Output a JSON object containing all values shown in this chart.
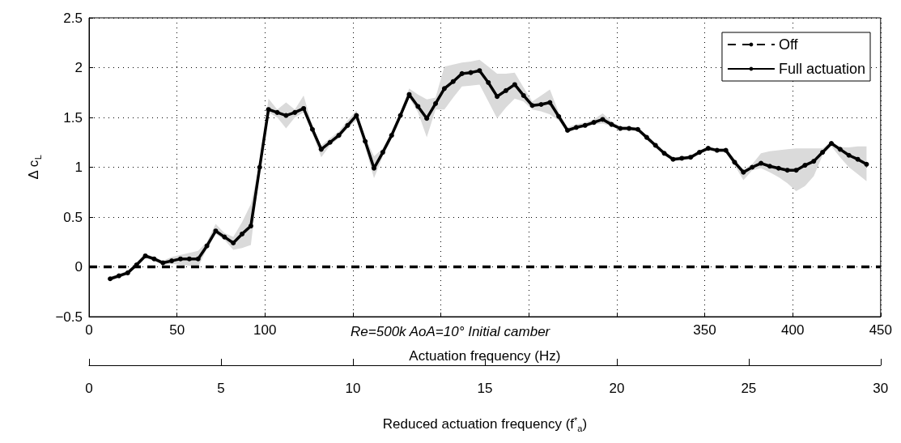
{
  "chart_data": {
    "type": "line",
    "xlabel": "Actuation frequency (Hz)",
    "ylabel": "Δ c$_{L}$",
    "x2label": "Reduced actuation frequency (f$^{*}$$_{a}$)",
    "annotations": [
      "Re=500k AoA=10° Initial camber"
    ],
    "xlim": [
      0,
      450
    ],
    "xticks": [
      0,
      50,
      100,
      {
        "value": 150,
        "label": null
      },
      {
        "value": 200,
        "label": null
      },
      {
        "value": 250,
        "label": null
      },
      {
        "value": 300,
        "label": null
      },
      350,
      400,
      450
    ],
    "x2lim": [
      0,
      30
    ],
    "x2ticks": [
      0,
      5,
      10,
      15,
      20,
      25,
      30
    ],
    "ylim": [
      -0.5,
      2.5
    ],
    "yticks": [
      {
        "value": -0.5,
        "label": "−0.5"
      },
      0,
      0.5,
      1,
      1.5,
      2,
      2.5
    ],
    "grid": true,
    "legend": "top right",
    "series": [
      {
        "name": "Off",
        "color": "#000000",
        "line_style": "dashed",
        "marker": "none",
        "x": [
          0,
          50,
          100,
          150,
          200,
          250,
          300,
          350,
          400,
          450
        ],
        "values": [
          0,
          0,
          0,
          0,
          0,
          0,
          0,
          0,
          0,
          0
        ]
      },
      {
        "name": "Full actuation",
        "color": "#000000",
        "line_style": "solid",
        "marker": "circle",
        "x": [
          12,
          17,
          22,
          27,
          32,
          37,
          42,
          47,
          52,
          57,
          62,
          67,
          72,
          77,
          82,
          87,
          92,
          97,
          102,
          107,
          112,
          117,
          122,
          127,
          132,
          137,
          142,
          147,
          152,
          157,
          162,
          167,
          172,
          177,
          182,
          187,
          192,
          197,
          202,
          207,
          212,
          217,
          222,
          227,
          232,
          237,
          242,
          247,
          252,
          257,
          262,
          267,
          272,
          277,
          282,
          287,
          292,
          297,
          302,
          307,
          312,
          317,
          322,
          327,
          332,
          337,
          342,
          347,
          352,
          357,
          362,
          367,
          372,
          377,
          382,
          387,
          392,
          397,
          402,
          407,
          412,
          417,
          422,
          427,
          432,
          437,
          442
        ],
        "values": [
          -0.12,
          -0.09,
          -0.06,
          0.02,
          0.11,
          0.08,
          0.04,
          0.06,
          0.08,
          0.08,
          0.08,
          0.21,
          0.36,
          0.3,
          0.24,
          0.33,
          0.41,
          1.0,
          1.58,
          1.55,
          1.52,
          1.55,
          1.59,
          1.38,
          1.18,
          1.25,
          1.32,
          1.42,
          1.52,
          1.26,
          0.99,
          1.15,
          1.32,
          1.52,
          1.73,
          1.61,
          1.49,
          1.64,
          1.79,
          1.86,
          1.94,
          1.95,
          1.97,
          1.85,
          1.71,
          1.77,
          1.83,
          1.72,
          1.62,
          1.63,
          1.65,
          1.51,
          1.37,
          1.4,
          1.42,
          1.45,
          1.48,
          1.43,
          1.39,
          1.39,
          1.38,
          1.3,
          1.22,
          1.14,
          1.08,
          1.09,
          1.1,
          1.15,
          1.19,
          1.17,
          1.17,
          1.05,
          0.95,
          1.0,
          1.04,
          1.01,
          0.99,
          0.97,
          0.97,
          1.02,
          1.06,
          1.15,
          1.24,
          1.18,
          1.12,
          1.08,
          1.03
        ],
        "lower": [
          -0.14,
          -0.11,
          -0.08,
          0.0,
          0.09,
          0.06,
          0.02,
          0.03,
          0.02,
          0.01,
          0.0,
          0.18,
          0.33,
          0.27,
          0.17,
          0.19,
          0.22,
          0.97,
          1.55,
          1.5,
          1.39,
          1.5,
          1.55,
          1.34,
          1.1,
          1.22,
          1.29,
          1.39,
          1.47,
          1.2,
          0.89,
          1.11,
          1.29,
          1.49,
          1.7,
          1.55,
          1.3,
          1.58,
          1.58,
          1.7,
          1.81,
          1.82,
          1.83,
          1.66,
          1.49,
          1.6,
          1.69,
          1.66,
          1.58,
          1.56,
          1.53,
          1.47,
          1.35,
          1.38,
          1.4,
          1.43,
          1.44,
          1.41,
          1.37,
          1.37,
          1.36,
          1.28,
          1.2,
          1.12,
          1.06,
          1.07,
          1.08,
          1.13,
          1.17,
          1.15,
          1.15,
          1.02,
          0.87,
          0.97,
          0.99,
          0.95,
          0.9,
          0.84,
          0.76,
          0.81,
          0.91,
          1.12,
          1.21,
          1.1,
          1.0,
          0.93,
          0.86
        ],
        "upper": [
          -0.1,
          -0.07,
          -0.04,
          0.04,
          0.13,
          0.1,
          0.06,
          0.1,
          0.12,
          0.14,
          0.16,
          0.25,
          0.43,
          0.34,
          0.3,
          0.45,
          0.63,
          1.03,
          1.69,
          1.58,
          1.65,
          1.58,
          1.72,
          1.41,
          1.22,
          1.29,
          1.36,
          1.47,
          1.57,
          1.3,
          1.11,
          1.19,
          1.36,
          1.55,
          1.79,
          1.73,
          1.68,
          1.7,
          2.01,
          2.03,
          2.05,
          2.06,
          2.08,
          2.01,
          1.94,
          1.94,
          1.95,
          1.8,
          1.66,
          1.72,
          1.78,
          1.55,
          1.4,
          1.43,
          1.45,
          1.48,
          1.54,
          1.46,
          1.41,
          1.41,
          1.4,
          1.32,
          1.24,
          1.16,
          1.1,
          1.11,
          1.12,
          1.17,
          1.21,
          1.19,
          1.19,
          1.08,
          0.98,
          1.03,
          1.14,
          1.16,
          1.17,
          1.18,
          1.19,
          1.19,
          1.19,
          1.19,
          1.26,
          1.2,
          1.2,
          1.21,
          1.21
        ]
      }
    ]
  }
}
